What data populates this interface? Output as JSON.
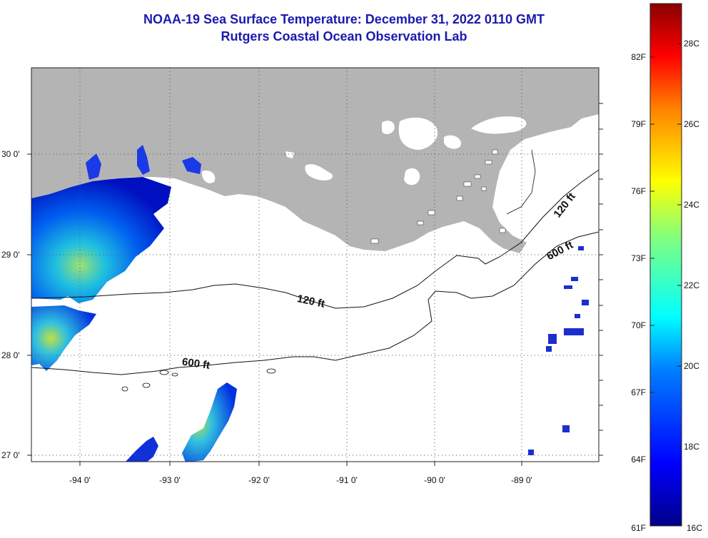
{
  "title": {
    "line1": "NOAA-19 Sea Surface Temperature:  December 31, 2022 0110 GMT",
    "line2": "Rutgers Coastal Ocean Observation Lab"
  },
  "map": {
    "lon_labels": [
      "-94 0'",
      "-93 0'",
      "-92 0'",
      "-91 0'",
      "-90 0'",
      "-89 0'"
    ],
    "lat_labels": [
      "30 0'",
      "29 0'",
      "28 0'",
      "27 0'"
    ],
    "contours": [
      {
        "label": "120 ft"
      },
      {
        "label": "600 ft"
      }
    ],
    "colors": {
      "land": "#b4b4b4",
      "water": "#ffffff",
      "grid": "#555555"
    }
  },
  "colorbar": {
    "fahrenheit_labels": [
      "82F",
      "79F",
      "76F",
      "73F",
      "70F",
      "67F",
      "64F",
      "61F"
    ],
    "celsius_labels": [
      "28C",
      "26C",
      "24C",
      "22C",
      "20C",
      "18C",
      "16C"
    ],
    "min_c": 16,
    "max_c": 29.5
  }
}
